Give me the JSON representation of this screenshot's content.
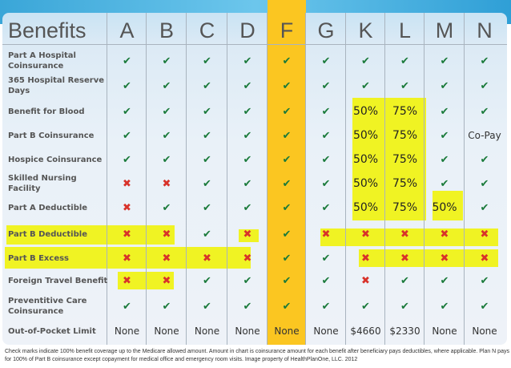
{
  "chart_data": {
    "type": "table",
    "header": "Benefits",
    "columns": [
      "A",
      "B",
      "C",
      "D",
      "F",
      "G",
      "K",
      "L",
      "M",
      "N"
    ],
    "highlighted_column": "F",
    "rows": [
      {
        "label": "Part A Hospital Coinsurance",
        "values": [
          "check",
          "check",
          "check",
          "check",
          "check",
          "check",
          "check",
          "check",
          "check",
          "check"
        ]
      },
      {
        "label": "365 Hospital Reserve Days",
        "values": [
          "check",
          "check",
          "check",
          "check",
          "check",
          "check",
          "check",
          "check",
          "check",
          "check"
        ]
      },
      {
        "label": "Benefit for Blood",
        "values": [
          "check",
          "check",
          "check",
          "check",
          "check",
          "check",
          "50%",
          "75%",
          "check",
          "check"
        ]
      },
      {
        "label": "Part B Coinsurance",
        "values": [
          "check",
          "check",
          "check",
          "check",
          "check",
          "check",
          "50%",
          "75%",
          "check",
          "Co-Pay"
        ]
      },
      {
        "label": "Hospice Coinsurance",
        "values": [
          "check",
          "check",
          "check",
          "check",
          "check",
          "check",
          "50%",
          "75%",
          "check",
          "check"
        ]
      },
      {
        "label": "Skilled Nursing Facility",
        "values": [
          "x",
          "x",
          "check",
          "check",
          "check",
          "check",
          "50%",
          "75%",
          "check",
          "check"
        ]
      },
      {
        "label": "Part A Deductible",
        "values": [
          "x",
          "check",
          "check",
          "check",
          "check",
          "check",
          "50%",
          "75%",
          "50%",
          "check"
        ]
      },
      {
        "label": "Part B Deductible",
        "values": [
          "x",
          "x",
          "check",
          "x",
          "check",
          "x",
          "x",
          "x",
          "x",
          "x"
        ]
      },
      {
        "label": "Part B Excess",
        "values": [
          "x",
          "x",
          "x",
          "x",
          "check",
          "check",
          "x",
          "x",
          "x",
          "x"
        ]
      },
      {
        "label": "Foreign Travel Benefit",
        "values": [
          "x",
          "x",
          "check",
          "check",
          "check",
          "check",
          "x",
          "check",
          "check",
          "check"
        ]
      },
      {
        "label": "Preventitive Care Coinsurance",
        "values": [
          "check",
          "check",
          "check",
          "check",
          "check",
          "check",
          "check",
          "check",
          "check",
          "check"
        ]
      },
      {
        "label": "Out-of-Pocket Limit",
        "values": [
          "None",
          "None",
          "None",
          "None",
          "None",
          "None",
          "$4660",
          "$2330",
          "None",
          "None"
        ]
      }
    ],
    "colors": {
      "check": "#1a7a3a",
      "x": "#d8322a",
      "highlight": "#f0f323",
      "featured_column": "#fbc621"
    }
  },
  "footnote": "Check marks indicate 100% benefit coverage up to the Medicare allowed amount. Amount in chart is coinsurance amount for each benefit after beneficiary pays deductibles, where applicable. Plan N pays for 100% of Part B coinsurance except copayment for medical office and emergency room visits. Image property of HealthPlanOne, LLC. 2012"
}
